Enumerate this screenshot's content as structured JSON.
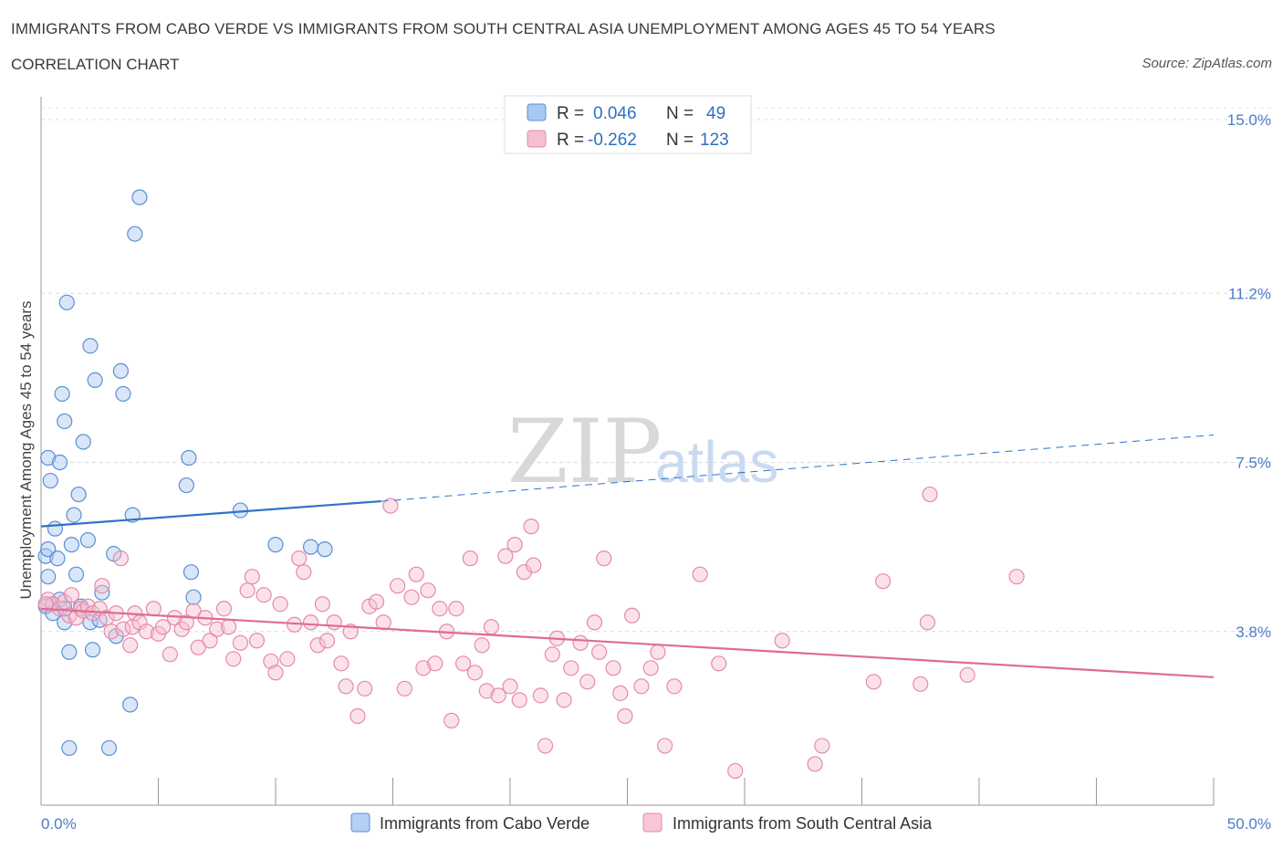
{
  "header": {
    "title": "IMMIGRANTS FROM CABO VERDE VS IMMIGRANTS FROM SOUTH CENTRAL ASIA UNEMPLOYMENT AMONG AGES 45 TO 54 YEARS",
    "subtitle": "CORRELATION CHART",
    "source": "Source: ZipAtlas.com"
  },
  "watermark": {
    "zip": "ZIP",
    "atlas": "atlas"
  },
  "legend": {
    "r_label": "R =",
    "n_label": "N =",
    "rows": [
      {
        "r": "0.046",
        "n": "49",
        "color": "#a9c8f0",
        "stroke": "#5b8ed6"
      },
      {
        "r": "-0.262",
        "n": "123",
        "color": "#f6bfd0",
        "stroke": "#e58aa8"
      }
    ]
  },
  "chart_data": {
    "type": "scatter",
    "title": "IMMIGRANTS FROM CABO VERDE VS IMMIGRANTS FROM SOUTH CENTRAL ASIA UNEMPLOYMENT AMONG AGES 45 TO 54 YEARS",
    "ylabel": "Unemployment Among Ages 45 to 54 years",
    "xlim": [
      0,
      50
    ],
    "ylim": [
      0,
      15.5
    ],
    "x_tick_labels": [
      "0.0%",
      "50.0%"
    ],
    "y_ticks": [
      {
        "value": 3.8,
        "label": "3.8%"
      },
      {
        "value": 7.5,
        "label": "7.5%"
      },
      {
        "value": 11.2,
        "label": "11.2%"
      },
      {
        "value": 15.0,
        "label": "15.0%"
      }
    ],
    "grid": "horizontal dashed",
    "legend_position": "top-center",
    "series": [
      {
        "name": "Immigrants from Cabo Verde",
        "color": "#a9c8f0",
        "stroke": "#5b8ed6",
        "trend": {
          "x0": 0,
          "y0": 6.1,
          "x1": 14.5,
          "y1": 6.65,
          "dash_to_x": 50,
          "dash_to_y": 8.1,
          "color": "#2f72c9"
        },
        "points": [
          [
            0.2,
            5.45
          ],
          [
            0.2,
            4.35
          ],
          [
            0.3,
            7.6
          ],
          [
            0.3,
            5.6
          ],
          [
            0.4,
            7.1
          ],
          [
            0.5,
            4.4
          ],
          [
            0.6,
            6.05
          ],
          [
            0.7,
            5.4
          ],
          [
            0.8,
            7.5
          ],
          [
            0.9,
            9.0
          ],
          [
            1.0,
            8.4
          ],
          [
            1.0,
            4.0
          ],
          [
            1.1,
            11.0
          ],
          [
            1.2,
            3.35
          ],
          [
            1.2,
            1.25
          ],
          [
            1.3,
            5.7
          ],
          [
            1.4,
            6.35
          ],
          [
            1.5,
            5.05
          ],
          [
            1.6,
            6.8
          ],
          [
            1.7,
            4.35
          ],
          [
            1.8,
            7.95
          ],
          [
            2.0,
            5.8
          ],
          [
            2.1,
            4.0
          ],
          [
            2.1,
            10.05
          ],
          [
            2.2,
            3.4
          ],
          [
            2.3,
            9.3
          ],
          [
            2.5,
            4.05
          ],
          [
            2.6,
            4.65
          ],
          [
            2.9,
            1.25
          ],
          [
            3.1,
            5.5
          ],
          [
            3.2,
            3.7
          ],
          [
            3.4,
            9.5
          ],
          [
            3.5,
            9.0
          ],
          [
            3.8,
            2.2
          ],
          [
            3.9,
            6.35
          ],
          [
            4.0,
            12.5
          ],
          [
            4.2,
            13.3
          ],
          [
            6.2,
            7.0
          ],
          [
            6.3,
            7.6
          ],
          [
            6.4,
            5.1
          ],
          [
            6.5,
            4.55
          ],
          [
            8.5,
            6.45
          ],
          [
            10.0,
            5.7
          ],
          [
            11.5,
            5.65
          ],
          [
            12.1,
            5.6
          ],
          [
            0.3,
            5.0
          ],
          [
            0.5,
            4.2
          ],
          [
            0.8,
            4.5
          ],
          [
            1.0,
            4.3
          ]
        ]
      },
      {
        "name": "Immigrants from South Central Asia",
        "color": "#f6bfd0",
        "stroke": "#e58aa8",
        "trend": {
          "x0": 0,
          "y0": 4.3,
          "x1": 50,
          "y1": 2.8,
          "color": "#e06b94"
        },
        "points": [
          [
            0.3,
            4.5
          ],
          [
            0.5,
            4.4
          ],
          [
            0.8,
            4.3
          ],
          [
            1.0,
            4.45
          ],
          [
            1.2,
            4.15
          ],
          [
            1.5,
            4.1
          ],
          [
            1.7,
            4.3
          ],
          [
            1.8,
            4.25
          ],
          [
            2.0,
            4.35
          ],
          [
            2.2,
            4.2
          ],
          [
            2.5,
            4.3
          ],
          [
            2.6,
            4.8
          ],
          [
            2.8,
            4.1
          ],
          [
            3.0,
            3.8
          ],
          [
            3.2,
            4.2
          ],
          [
            3.4,
            5.4
          ],
          [
            3.5,
            3.85
          ],
          [
            3.8,
            3.5
          ],
          [
            3.9,
            3.9
          ],
          [
            4.0,
            4.2
          ],
          [
            4.2,
            4.0
          ],
          [
            4.5,
            3.8
          ],
          [
            4.8,
            4.3
          ],
          [
            5.0,
            3.75
          ],
          [
            5.2,
            3.9
          ],
          [
            5.5,
            3.3
          ],
          [
            5.7,
            4.1
          ],
          [
            6.0,
            3.85
          ],
          [
            6.2,
            4.0
          ],
          [
            6.5,
            4.25
          ],
          [
            6.7,
            3.45
          ],
          [
            7.0,
            4.1
          ],
          [
            7.2,
            3.6
          ],
          [
            7.5,
            3.85
          ],
          [
            7.8,
            4.3
          ],
          [
            8.0,
            3.9
          ],
          [
            8.2,
            3.2
          ],
          [
            8.5,
            3.55
          ],
          [
            8.8,
            4.7
          ],
          [
            9.0,
            5.0
          ],
          [
            9.2,
            3.6
          ],
          [
            9.5,
            4.6
          ],
          [
            9.8,
            3.15
          ],
          [
            10.0,
            2.9
          ],
          [
            10.2,
            4.4
          ],
          [
            10.5,
            3.2
          ],
          [
            10.8,
            3.95
          ],
          [
            11.0,
            5.4
          ],
          [
            11.2,
            5.1
          ],
          [
            11.5,
            4.0
          ],
          [
            11.8,
            3.5
          ],
          [
            12.0,
            4.4
          ],
          [
            12.2,
            3.6
          ],
          [
            12.5,
            4.0
          ],
          [
            12.8,
            3.1
          ],
          [
            13.0,
            2.6
          ],
          [
            13.2,
            3.8
          ],
          [
            13.5,
            1.95
          ],
          [
            13.8,
            2.55
          ],
          [
            14.0,
            4.35
          ],
          [
            14.3,
            4.45
          ],
          [
            14.6,
            4.0
          ],
          [
            14.9,
            6.55
          ],
          [
            15.2,
            4.8
          ],
          [
            15.5,
            2.55
          ],
          [
            15.8,
            4.55
          ],
          [
            16.0,
            5.05
          ],
          [
            16.3,
            3.0
          ],
          [
            16.5,
            4.7
          ],
          [
            16.8,
            3.1
          ],
          [
            17.0,
            4.3
          ],
          [
            17.3,
            3.8
          ],
          [
            17.5,
            1.85
          ],
          [
            17.7,
            4.3
          ],
          [
            18.0,
            3.1
          ],
          [
            18.3,
            5.4
          ],
          [
            18.5,
            2.9
          ],
          [
            18.8,
            3.5
          ],
          [
            19.0,
            2.5
          ],
          [
            19.2,
            3.9
          ],
          [
            19.5,
            2.4
          ],
          [
            19.8,
            5.45
          ],
          [
            20.0,
            2.6
          ],
          [
            20.2,
            5.7
          ],
          [
            20.4,
            2.3
          ],
          [
            20.6,
            5.1
          ],
          [
            20.9,
            6.1
          ],
          [
            21.0,
            5.25
          ],
          [
            21.3,
            2.4
          ],
          [
            21.5,
            1.3
          ],
          [
            21.8,
            3.3
          ],
          [
            22.0,
            3.65
          ],
          [
            22.3,
            2.3
          ],
          [
            22.6,
            3.0
          ],
          [
            23.0,
            3.55
          ],
          [
            23.3,
            2.7
          ],
          [
            23.6,
            4.0
          ],
          [
            23.8,
            3.35
          ],
          [
            24.0,
            5.4
          ],
          [
            24.4,
            3.0
          ],
          [
            24.7,
            2.45
          ],
          [
            24.9,
            1.95
          ],
          [
            25.2,
            4.15
          ],
          [
            25.6,
            2.6
          ],
          [
            26.0,
            3.0
          ],
          [
            26.3,
            3.35
          ],
          [
            26.6,
            1.3
          ],
          [
            27.0,
            2.6
          ],
          [
            28.1,
            5.05
          ],
          [
            28.9,
            3.1
          ],
          [
            29.6,
            0.75
          ],
          [
            31.6,
            3.6
          ],
          [
            33.0,
            0.9
          ],
          [
            33.3,
            1.3
          ],
          [
            35.5,
            2.7
          ],
          [
            35.9,
            4.9
          ],
          [
            37.5,
            2.65
          ],
          [
            37.8,
            4.0
          ],
          [
            37.9,
            6.8
          ],
          [
            39.5,
            2.85
          ],
          [
            41.6,
            5.0
          ],
          [
            0.2,
            4.4
          ],
          [
            1.3,
            4.6
          ]
        ]
      }
    ]
  },
  "bottom_legend": [
    {
      "label": "Immigrants from Cabo Verde",
      "color": "#b5d0f3",
      "stroke": "#5b8ed6"
    },
    {
      "label": "Immigrants from South Central Asia",
      "color": "#f8c6d6",
      "stroke": "#e58aa8"
    }
  ]
}
